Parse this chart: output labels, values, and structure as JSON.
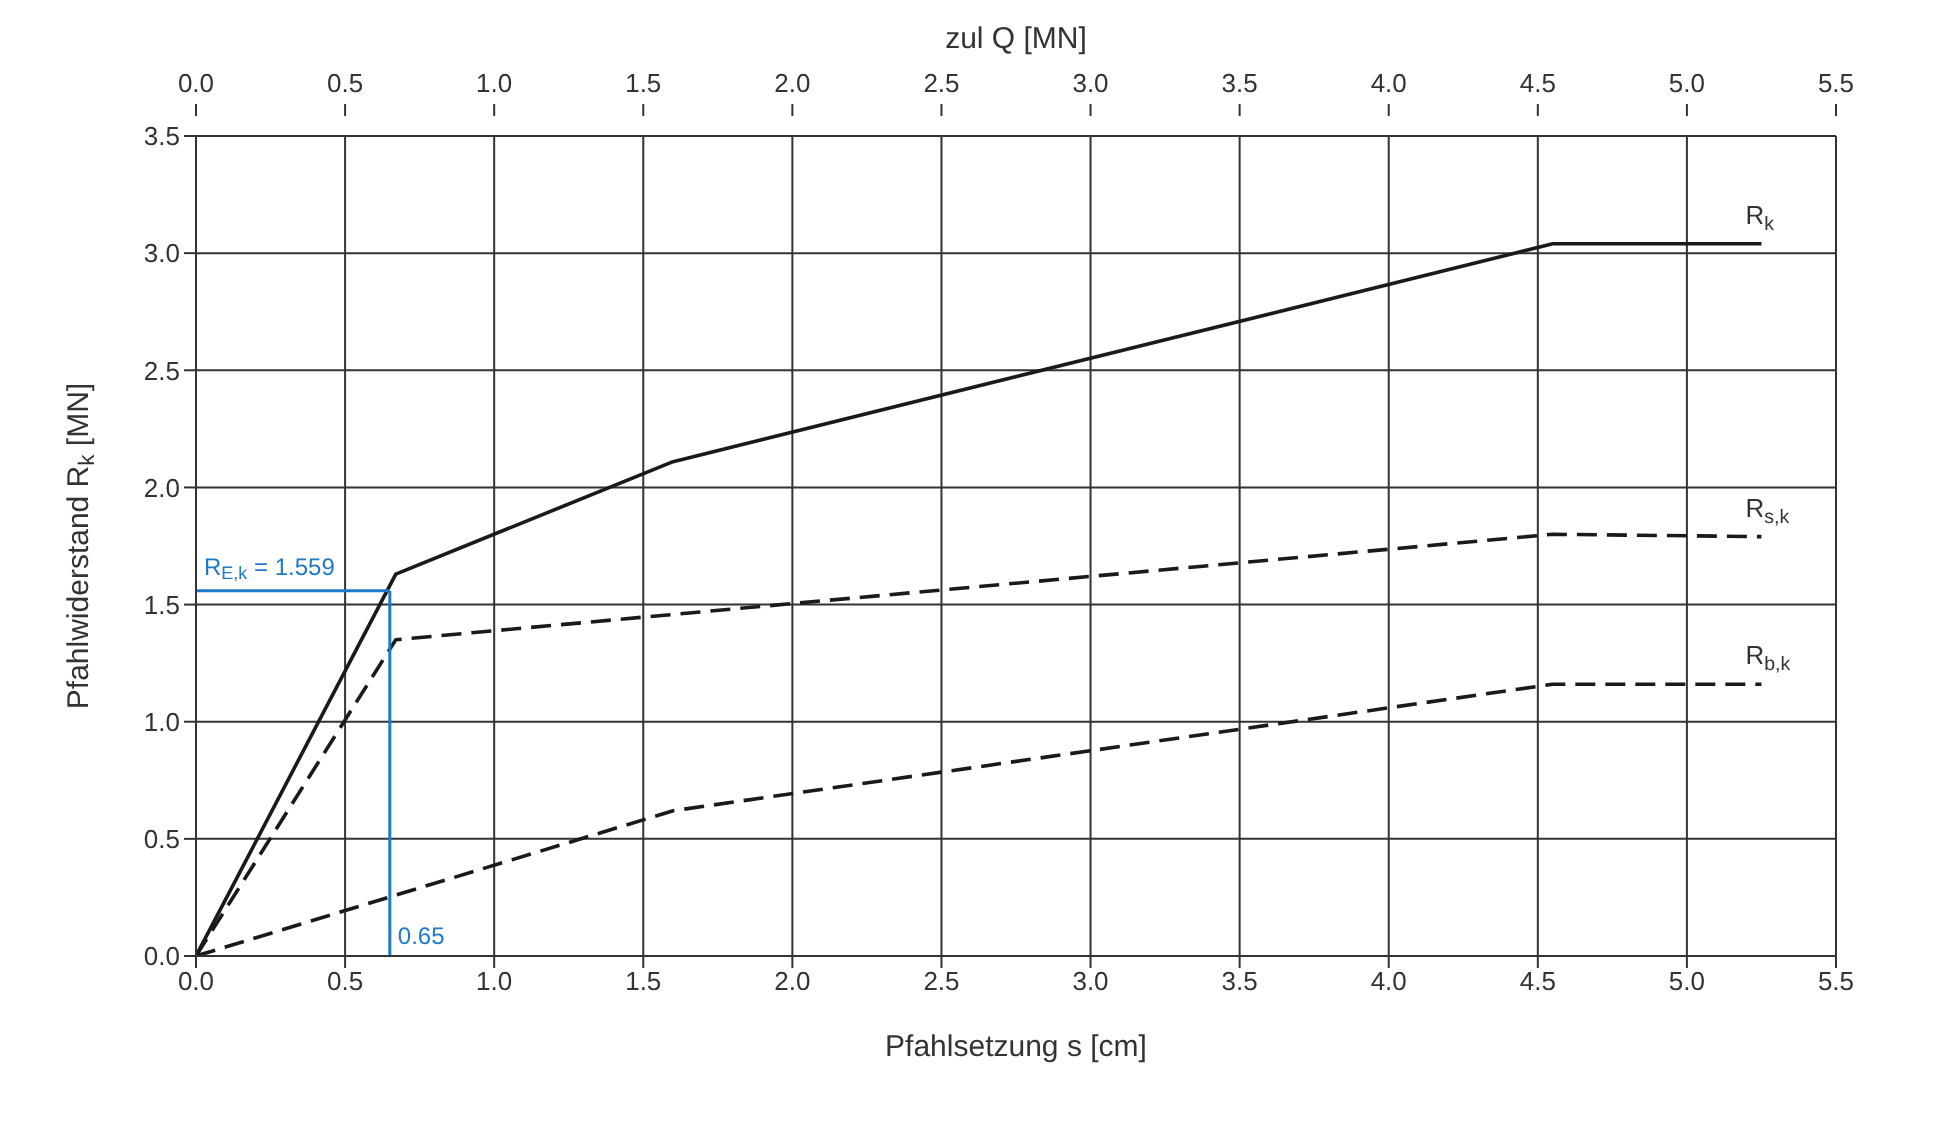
{
  "chart_data": {
    "type": "line",
    "xlabel": "Pfahlsetzung s [cm]",
    "ylabel": "Pfahlwiderstand R$_{k}$ [MN]",
    "x2label": "zul Q [MN]",
    "xlim": [
      0,
      5.5
    ],
    "xticks": [
      {
        "value": 0,
        "label": "0.0"
      },
      0.5,
      {
        "value": 1,
        "label": "1.0"
      },
      1.5,
      {
        "value": 2,
        "label": "2.0"
      },
      2.5,
      {
        "value": 3,
        "label": "3.0"
      },
      3.5,
      {
        "value": 4,
        "label": "4.0"
      },
      4.5,
      {
        "value": 5,
        "label": "5.0"
      },
      5.5
    ],
    "x2lim": [
      0,
      5.5
    ],
    "x2ticks": [
      {
        "value": 0,
        "label": "0.0"
      },
      0.5,
      {
        "value": 1,
        "label": "1.0"
      },
      1.5,
      {
        "value": 2,
        "label": "2.0"
      },
      2.5,
      {
        "value": 3,
        "label": "3.0"
      },
      3.5,
      {
        "value": 4,
        "label": "4.0"
      },
      4.5,
      {
        "value": 5,
        "label": "5.0"
      },
      5.5
    ],
    "ylim": [
      0,
      3.5
    ],
    "yticks": [
      {
        "value": 0,
        "label": "0.0"
      },
      0.5,
      {
        "value": 1,
        "label": "1.0"
      },
      1.5,
      {
        "value": 2,
        "label": "2.0"
      },
      2.5,
      {
        "value": 3,
        "label": "3.0"
      },
      3.5
    ],
    "grid": true,
    "marker": "none",
    "series": [
      {
        "name": "R$_{k}$",
        "color": "#1a1a1a",
        "line_style": "solid",
        "x": [
          0,
          0.67,
          1.6,
          4.55,
          5.25
        ],
        "values": [
          0,
          1.63,
          2.11,
          3.04,
          3.04
        ]
      },
      {
        "name": "R$_{s,k}$",
        "color": "#1a1a1a",
        "line_style": "dashed",
        "x": [
          0,
          0.67,
          4.55,
          5.25
        ],
        "values": [
          0,
          1.35,
          1.8,
          1.79
        ]
      },
      {
        "name": "R$_{b,k}$",
        "color": "#1a1a1a",
        "line_style": "dashed",
        "x": [
          0,
          1.6,
          4.55,
          5.25
        ],
        "values": [
          0,
          0.62,
          1.16,
          1.16
        ]
      }
    ],
    "ref_lines": [
      {
        "axis": "x",
        "value": 0.65,
        "label": "0.65",
        "color": "#1f78c8"
      },
      {
        "axis": "y",
        "value": 1.559,
        "label": "R$_{E,k}$ = 1.559",
        "color": "#1f78c8"
      }
    ]
  }
}
